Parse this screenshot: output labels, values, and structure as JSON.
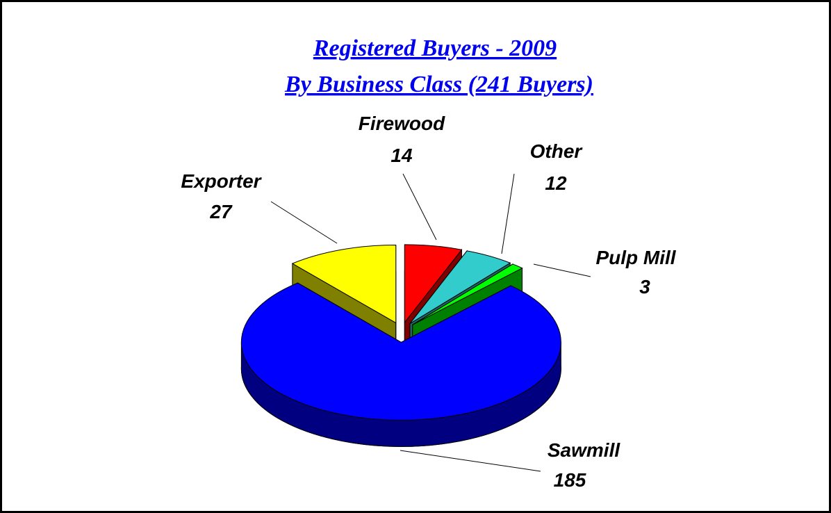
{
  "chart_data": {
    "type": "pie3d",
    "title": "Registered Buyers - 2009",
    "subtitle": "By Business Class (241 Buyers)",
    "categories": [
      "Firewood",
      "Other",
      "Pulp Mill",
      "Sawmill",
      "Exporter"
    ],
    "values": [
      14,
      12,
      3,
      185,
      27
    ],
    "colors": [
      "#ff0000",
      "#33cccc",
      "#00ff00",
      "#0000ff",
      "#ffff00"
    ]
  }
}
